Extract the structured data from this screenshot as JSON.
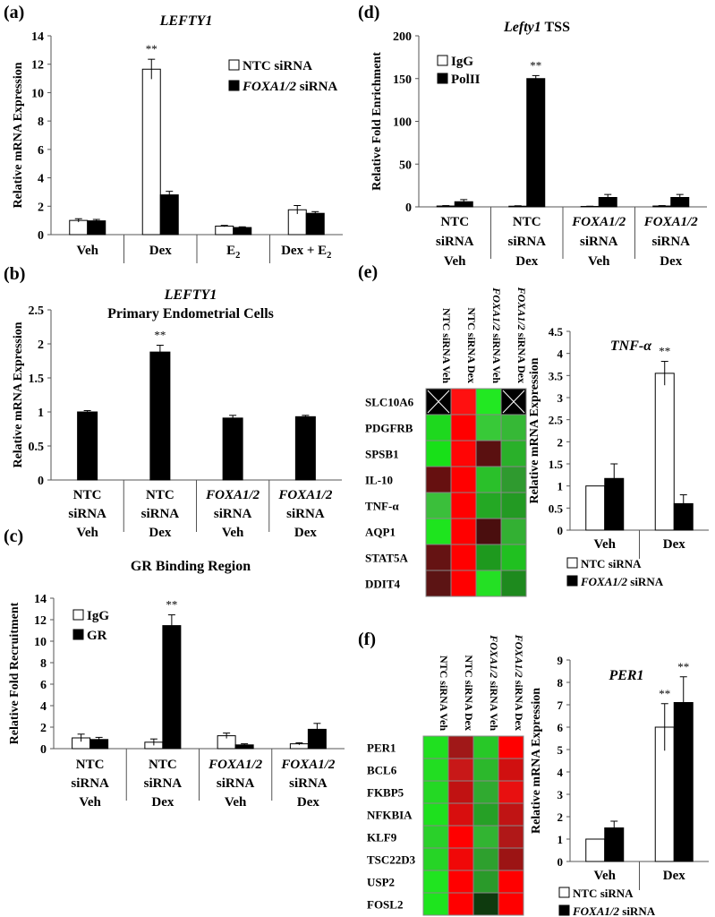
{
  "colors": {
    "white_bar": "#ffffff",
    "black_bar": "#000000",
    "heat_red": "#ff0000",
    "heat_green": "#00ff00",
    "heat_dark": "#3a0000"
  },
  "chart_data": [
    {
      "id": "a",
      "type": "bar",
      "panel_label": "(a)",
      "title": "LEFTY1",
      "title_style": "italic",
      "ylabel": "Relative mRNA Expression",
      "ylim": [
        0,
        14
      ],
      "yticks": [
        0,
        2,
        4,
        6,
        8,
        10,
        12,
        14
      ],
      "categories": [
        [
          "Veh"
        ],
        [
          "Dex"
        ],
        [
          "E2"
        ],
        [
          "Dex + E2"
        ]
      ],
      "series": [
        {
          "name": "NTC siRNA",
          "fill": "white",
          "values": [
            1.0,
            11.65,
            0.6,
            1.75
          ],
          "errors": [
            0.12,
            0.7,
            0.05,
            0.3
          ]
        },
        {
          "name": "FOXA1/2 siRNA",
          "fill": "black",
          "values": [
            0.97,
            2.8,
            0.5,
            1.5
          ],
          "errors": [
            0.1,
            0.25,
            0.05,
            0.12
          ]
        }
      ],
      "legend": [
        {
          "prefix": "",
          "text": "NTC siRNA"
        },
        {
          "prefix": "FOXA1/2",
          "text": " siRNA"
        }
      ],
      "annotations": [
        {
          "series": 0,
          "category": 1,
          "text": "**"
        }
      ]
    },
    {
      "id": "b",
      "type": "bar",
      "panel_label": "(b)",
      "title": "LEFTY1",
      "subtitle": "Primary Endometrial Cells",
      "ylabel": "Relative mRNA Expression",
      "ylim": [
        0,
        2.5
      ],
      "yticks": [
        0,
        0.5,
        1,
        1.5,
        2,
        2.5
      ],
      "categories": [
        [
          "NTC",
          "siRNA",
          "Veh"
        ],
        [
          "NTC",
          "siRNA",
          "Dex"
        ],
        [
          "FOXA1/2",
          "siRNA",
          "Veh"
        ],
        [
          "FOXA1/2",
          "siRNA",
          "Dex"
        ]
      ],
      "series": [
        {
          "name": "",
          "fill": "black",
          "values": [
            1.0,
            1.88,
            0.91,
            0.93
          ],
          "errors": [
            0.02,
            0.1,
            0.04,
            0.02
          ]
        }
      ],
      "annotations": [
        {
          "series": 0,
          "category": 1,
          "text": "**"
        }
      ]
    },
    {
      "id": "c",
      "type": "bar",
      "panel_label": "(c)",
      "title": "GR Binding Region",
      "ylabel": "Relative Fold Recruitment",
      "ylim": [
        0,
        14
      ],
      "yticks": [
        0,
        2,
        4,
        6,
        8,
        10,
        12,
        14
      ],
      "categories": [
        [
          "NTC",
          "siRNA",
          "Veh"
        ],
        [
          "NTC",
          "siRNA",
          "Dex"
        ],
        [
          "FOXA1/2",
          "siRNA",
          "Veh"
        ],
        [
          "FOXA1/2",
          "siRNA",
          "Dex"
        ]
      ],
      "series": [
        {
          "name": "IgG",
          "fill": "white",
          "values": [
            1.0,
            0.6,
            1.2,
            0.45
          ],
          "errors": [
            0.35,
            0.3,
            0.25,
            0.1
          ]
        },
        {
          "name": "GR",
          "fill": "black",
          "values": [
            0.85,
            11.45,
            0.35,
            1.8
          ],
          "errors": [
            0.2,
            1.0,
            0.1,
            0.55
          ]
        }
      ],
      "legend": [
        {
          "prefix": "",
          "text": "IgG"
        },
        {
          "prefix": "",
          "text": "GR"
        }
      ],
      "annotations": [
        {
          "series": 1,
          "category": 1,
          "text": "**"
        }
      ]
    },
    {
      "id": "d",
      "type": "bar",
      "panel_label": "(d)",
      "title": "Lefty1 TSS",
      "title_italic_part": "Lefty1",
      "ylabel": "Relative Fold Enrichment",
      "ylim": [
        0,
        200
      ],
      "yticks": [
        0,
        50,
        100,
        150,
        200
      ],
      "categories": [
        [
          "NTC",
          "siRNA",
          "Veh"
        ],
        [
          "NTC",
          "siRNA",
          "Dex"
        ],
        [
          "FOXA1/2",
          "siRNA",
          "Veh"
        ],
        [
          "FOXA1/2",
          "siRNA",
          "Dex"
        ]
      ],
      "series": [
        {
          "name": "IgG",
          "fill": "white",
          "values": [
            1.0,
            0.8,
            0.5,
            1.0
          ],
          "errors": [
            0.5,
            0.5,
            0.3,
            0.5
          ]
        },
        {
          "name": "PolII",
          "fill": "black",
          "values": [
            6.0,
            150.0,
            11.0,
            11.0
          ],
          "errors": [
            2.5,
            3.5,
            3.5,
            3.5
          ]
        }
      ],
      "legend": [
        {
          "prefix": "",
          "text": "IgG"
        },
        {
          "prefix": "",
          "text": "PolII"
        }
      ],
      "annotations": [
        {
          "series": 1,
          "category": 1,
          "text": "**"
        }
      ]
    },
    {
      "id": "e",
      "type": "heatmap",
      "panel_label": "(e)",
      "columns": [
        "NTC siRNA Veh",
        "NTC siRNA Dex",
        "FOXA1/2 siRNA Veh",
        "FOXA1/2 siRNA Dex"
      ],
      "rows": [
        "SLC10A6",
        "PDGFRB",
        "SPSB1",
        "IL-10",
        "TNF-α",
        "AQP1",
        "STAT5A",
        "DDIT4"
      ],
      "cells": [
        [
          "x",
          "#ff1010",
          "#22e822",
          "x"
        ],
        [
          "#1ed81e",
          "#ff0000",
          "#38c938",
          "#36b836"
        ],
        [
          "#18e018",
          "#ff0505",
          "#5a1010",
          "#2ab02a"
        ],
        [
          "#661010",
          "#ff0000",
          "#2ac02a",
          "#2f9a2f"
        ],
        [
          "#3bbf3b",
          "#ff0000",
          "#24a824",
          "#239a23"
        ],
        [
          "#1ee41e",
          "#ff0000",
          "#4a0e0e",
          "#33b033"
        ],
        [
          "#651313",
          "#ff0000",
          "#1e991e",
          "#20c020"
        ],
        [
          "#5c1414",
          "#ff0000",
          "#24e024",
          "#1e8a1e"
        ]
      ]
    },
    {
      "id": "e2",
      "type": "bar",
      "title": "TNF-α",
      "ylabel": "Relative mRNA Expression",
      "ylim": [
        0,
        4.5
      ],
      "yticks": [
        0,
        0.5,
        1,
        1.5,
        2,
        2.5,
        3,
        3.5,
        4,
        4.5
      ],
      "categories": [
        [
          "Veh"
        ],
        [
          "Dex"
        ]
      ],
      "series": [
        {
          "name": "NTC siRNA",
          "fill": "white",
          "values": [
            1.0,
            3.55
          ],
          "errors": [
            0.0,
            0.27
          ]
        },
        {
          "name": "FOXA1/2 siRNA",
          "fill": "black",
          "values": [
            1.17,
            0.6
          ],
          "errors": [
            0.33,
            0.2
          ]
        }
      ],
      "legend": [
        {
          "prefix": "",
          "text": "NTC siRNA"
        },
        {
          "prefix": "FOXA1/2",
          "text": " siRNA"
        }
      ],
      "annotations": [
        {
          "series": 0,
          "category": 1,
          "text": "**"
        }
      ]
    },
    {
      "id": "f",
      "type": "heatmap",
      "panel_label": "(f)",
      "columns": [
        "NTC siRNA Veh",
        "NTC siRNA Dex",
        "FOXA1/2 siRNA Veh",
        "FOXA1/2 siRNA Dex"
      ],
      "rows": [
        "PER1",
        "BCL6",
        "FKBP5",
        "NFKBIA",
        "KLF9",
        "TSC22D3",
        "USP2",
        "FOSL2"
      ],
      "cells": [
        [
          "#20e020",
          "#a01818",
          "#28c828",
          "#ff0000"
        ],
        [
          "#22dd22",
          "#c81818",
          "#2cb82c",
          "#d01010"
        ],
        [
          "#24d824",
          "#c01212",
          "#30aa30",
          "#e81010"
        ],
        [
          "#1ee01e",
          "#d80e0e",
          "#26a026",
          "#c01414"
        ],
        [
          "#2ad02a",
          "#ff0000",
          "#32b432",
          "#b01818"
        ],
        [
          "#26d426",
          "#f00808",
          "#2ea02e",
          "#9c1414"
        ],
        [
          "#20e420",
          "#ff0000",
          "#2a9a2a",
          "#ff0000"
        ],
        [
          "#1ee41e",
          "#ff0000",
          "#0e3a0e",
          "#ff0000"
        ]
      ]
    },
    {
      "id": "f2",
      "type": "bar",
      "title": "PER1",
      "ylabel": "Relative mRNA Expression",
      "ylim": [
        0,
        9
      ],
      "yticks": [
        0,
        1,
        2,
        3,
        4,
        5,
        6,
        7,
        8,
        9
      ],
      "categories": [
        [
          "Veh"
        ],
        [
          "Dex"
        ]
      ],
      "series": [
        {
          "name": "NTC siRNA",
          "fill": "white",
          "values": [
            1.0,
            6.0
          ],
          "errors": [
            0.0,
            1.05
          ]
        },
        {
          "name": "FOXA1/2 siRNA",
          "fill": "black",
          "values": [
            1.5,
            7.1
          ],
          "errors": [
            0.3,
            1.15
          ]
        }
      ],
      "legend": [
        {
          "prefix": "",
          "text": "NTC siRNA"
        },
        {
          "prefix": "FOXA1/2",
          "text": " siRNA"
        }
      ],
      "annotations": [
        {
          "series": 0,
          "category": 1,
          "text": "**"
        },
        {
          "series": 1,
          "category": 1,
          "text": "**"
        }
      ]
    }
  ]
}
